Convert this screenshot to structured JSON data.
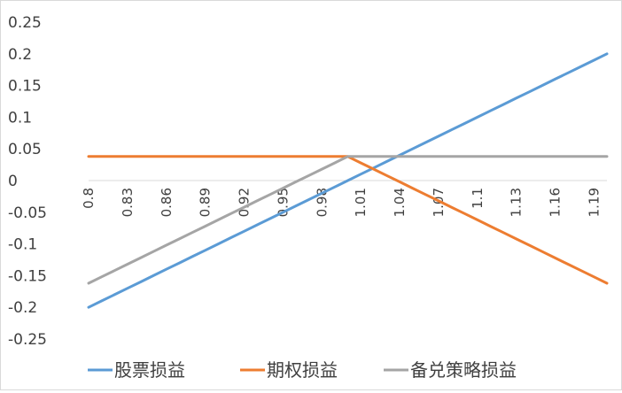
{
  "chart_data": {
    "type": "line",
    "title": "",
    "xlabel": "",
    "ylabel": "",
    "x": [
      0.8,
      0.81,
      0.82,
      0.83,
      0.84,
      0.85,
      0.86,
      0.87,
      0.88,
      0.89,
      0.9,
      0.91,
      0.92,
      0.93,
      0.94,
      0.95,
      0.96,
      0.97,
      0.98,
      0.99,
      1.0,
      1.01,
      1.02,
      1.03,
      1.04,
      1.05,
      1.06,
      1.07,
      1.08,
      1.09,
      1.1,
      1.11,
      1.12,
      1.13,
      1.14,
      1.15,
      1.16,
      1.17,
      1.18,
      1.19,
      1.2
    ],
    "x_tick_labels": [
      "0.8",
      "0.83",
      "0.86",
      "0.89",
      "0.92",
      "0.95",
      "0.98",
      "1.01",
      "1.04",
      "1.07",
      "1.1",
      "1.13",
      "1.16",
      "1.19"
    ],
    "x_tick_values": [
      0.8,
      0.83,
      0.86,
      0.89,
      0.92,
      0.95,
      0.98,
      1.01,
      1.04,
      1.07,
      1.1,
      1.13,
      1.16,
      1.19
    ],
    "ylim": [
      -0.25,
      0.25
    ],
    "y_ticks": [
      {
        "value": 0.25,
        "label": "0.25"
      },
      {
        "value": 0.2,
        "label": "0.2"
      },
      {
        "value": 0.15,
        "label": "0.15"
      },
      {
        "value": 0.1,
        "label": "0.1"
      },
      {
        "value": 0.05,
        "label": "0.05"
      },
      {
        "value": 0,
        "label": "0"
      },
      {
        "value": -0.05,
        "label": "-0.05"
      },
      {
        "value": -0.1,
        "label": "-0.1"
      },
      {
        "value": -0.15,
        "label": "-0.15"
      },
      {
        "value": -0.2,
        "label": "-0.2"
      },
      {
        "value": -0.25,
        "label": "-0.25"
      }
    ],
    "grid": false,
    "legend_position": "bottom",
    "series": [
      {
        "name": "股票损益",
        "color": "#5B9BD5",
        "values": [
          -0.2,
          -0.19,
          -0.18,
          -0.17,
          -0.16,
          -0.15,
          -0.14,
          -0.13,
          -0.12,
          -0.11,
          -0.1,
          -0.09,
          -0.08,
          -0.07,
          -0.06,
          -0.05,
          -0.04,
          -0.03,
          -0.02,
          -0.01,
          0.0,
          0.01,
          0.02,
          0.03,
          0.04,
          0.05,
          0.06,
          0.07,
          0.08,
          0.09,
          0.1,
          0.11,
          0.12,
          0.13,
          0.14,
          0.15,
          0.16,
          0.17,
          0.18,
          0.19,
          0.2
        ]
      },
      {
        "name": "期权损益",
        "color": "#ED7D31",
        "values": [
          0.038,
          0.038,
          0.038,
          0.038,
          0.038,
          0.038,
          0.038,
          0.038,
          0.038,
          0.038,
          0.038,
          0.038,
          0.038,
          0.038,
          0.038,
          0.038,
          0.038,
          0.038,
          0.038,
          0.038,
          0.038,
          0.028,
          0.018,
          0.008,
          -0.002,
          -0.012,
          -0.022,
          -0.032,
          -0.042,
          -0.052,
          -0.062,
          -0.072,
          -0.082,
          -0.092,
          -0.102,
          -0.112,
          -0.122,
          -0.132,
          -0.142,
          -0.152,
          -0.162
        ]
      },
      {
        "name": "备兑策略损益",
        "color": "#A5A5A5",
        "values": [
          -0.162,
          -0.152,
          -0.142,
          -0.132,
          -0.122,
          -0.112,
          -0.102,
          -0.092,
          -0.082,
          -0.072,
          -0.062,
          -0.052,
          -0.042,
          -0.032,
          -0.022,
          -0.012,
          -0.002,
          0.008,
          0.018,
          0.028,
          0.038,
          0.038,
          0.038,
          0.038,
          0.038,
          0.038,
          0.038,
          0.038,
          0.038,
          0.038,
          0.038,
          0.038,
          0.038,
          0.038,
          0.038,
          0.038,
          0.038,
          0.038,
          0.038,
          0.038,
          0.038
        ]
      }
    ]
  }
}
